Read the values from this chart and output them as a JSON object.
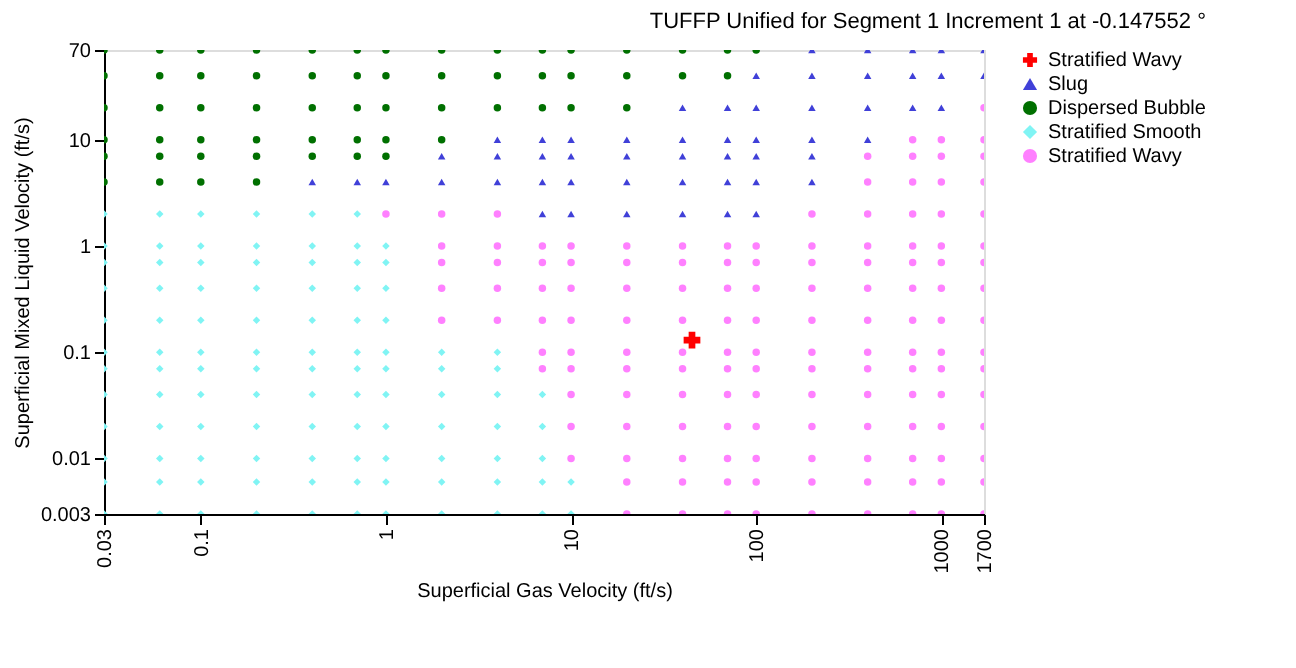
{
  "chart_data": {
    "type": "scatter",
    "title": "TUFFP Unified for Segment 1 Increment 1 at -0.147552 °",
    "xlabel": "Superficial Gas Velocity (ft/s)",
    "ylabel": "Superficial Mixed Liquid Velocity (ft/s)",
    "log": "xy",
    "xlim": [
      0.03,
      1700
    ],
    "ylim": [
      0.003,
      70
    ],
    "xticks": [
      0.03,
      0.1,
      1,
      10,
      100,
      1000,
      1700
    ],
    "yticks": [
      0.003,
      0.01,
      0.1,
      1,
      10,
      70
    ],
    "legend": "right",
    "series": [
      {
        "name": "Stratified Wavy",
        "color": "#ff0000",
        "marker": "cross",
        "x": [
          45
        ],
        "values": [
          0.13
        ]
      },
      {
        "name": "Slug",
        "color": "#4040d8",
        "marker": "triangle",
        "x": [
          0.4,
          0.7,
          1,
          2,
          2,
          4,
          4,
          4,
          7,
          7,
          7,
          7,
          10,
          10,
          10,
          10,
          20,
          20,
          20,
          20,
          40,
          40,
          40,
          40,
          40,
          70,
          70,
          70,
          70,
          70,
          100,
          100,
          100,
          100,
          100,
          100,
          200,
          200,
          200,
          200,
          200,
          200,
          400,
          400,
          400,
          400,
          700,
          700,
          700,
          1000,
          1000,
          1000,
          1700,
          1700
        ],
        "values": [
          4,
          4,
          4,
          4,
          7,
          4,
          7,
          10,
          2,
          4,
          7,
          10,
          2,
          4,
          7,
          10,
          2,
          4,
          7,
          10,
          2,
          4,
          7,
          10,
          20,
          2,
          4,
          7,
          10,
          20,
          2,
          4,
          7,
          10,
          20,
          40,
          4,
          7,
          10,
          20,
          40,
          70,
          10,
          20,
          40,
          70,
          20,
          40,
          70,
          20,
          40,
          70,
          40,
          70
        ]
      },
      {
        "name": "Dispersed Bubble",
        "color": "#007000",
        "marker": "circle",
        "x": [
          0.03,
          0.03,
          0.03,
          0.03,
          0.03,
          0.03,
          0.06,
          0.06,
          0.06,
          0.06,
          0.06,
          0.06,
          0.1,
          0.1,
          0.1,
          0.1,
          0.1,
          0.1,
          0.2,
          0.2,
          0.2,
          0.2,
          0.2,
          0.2,
          0.4,
          0.4,
          0.4,
          0.4,
          0.4,
          0.7,
          0.7,
          0.7,
          0.7,
          0.7,
          1,
          1,
          1,
          1,
          1,
          2,
          2,
          2,
          2,
          4,
          4,
          4,
          7,
          7,
          7,
          10,
          10,
          10,
          20,
          20,
          20,
          40,
          40,
          70,
          70,
          100
        ],
        "values": [
          4,
          7,
          10,
          20,
          40,
          70,
          4,
          7,
          10,
          20,
          40,
          70,
          4,
          7,
          10,
          20,
          40,
          70,
          4,
          7,
          10,
          20,
          40,
          70,
          7,
          10,
          20,
          40,
          70,
          7,
          10,
          20,
          40,
          70,
          7,
          10,
          20,
          40,
          70,
          10,
          20,
          40,
          70,
          20,
          40,
          70,
          20,
          40,
          70,
          20,
          40,
          70,
          20,
          40,
          70,
          40,
          70,
          40,
          70,
          70
        ]
      },
      {
        "name": "Stratified Smooth",
        "color": "#80f4f4",
        "marker": "diamond",
        "x": [
          0.03,
          0.03,
          0.03,
          0.03,
          0.03,
          0.03,
          0.03,
          0.03,
          0.03,
          0.03,
          0.03,
          0.03,
          0.06,
          0.06,
          0.06,
          0.06,
          0.06,
          0.06,
          0.06,
          0.06,
          0.06,
          0.06,
          0.06,
          0.06,
          0.1,
          0.1,
          0.1,
          0.1,
          0.1,
          0.1,
          0.1,
          0.1,
          0.1,
          0.1,
          0.1,
          0.1,
          0.2,
          0.2,
          0.2,
          0.2,
          0.2,
          0.2,
          0.2,
          0.2,
          0.2,
          0.2,
          0.2,
          0.2,
          0.4,
          0.4,
          0.4,
          0.4,
          0.4,
          0.4,
          0.4,
          0.4,
          0.4,
          0.4,
          0.4,
          0.4,
          0.7,
          0.7,
          0.7,
          0.7,
          0.7,
          0.7,
          0.7,
          0.7,
          0.7,
          0.7,
          0.7,
          0.7,
          1,
          1,
          1,
          1,
          1,
          1,
          1,
          1,
          1,
          1,
          1,
          2,
          2,
          2,
          2,
          2,
          2,
          2,
          4,
          4,
          4,
          4,
          4,
          4,
          4,
          7,
          7,
          7,
          7,
          7,
          10,
          10
        ],
        "values": [
          0.003,
          0.006,
          0.01,
          0.02,
          0.04,
          0.07,
          0.1,
          0.2,
          0.4,
          0.7,
          1,
          2,
          0.003,
          0.006,
          0.01,
          0.02,
          0.04,
          0.07,
          0.1,
          0.2,
          0.4,
          0.7,
          1,
          2,
          0.003,
          0.006,
          0.01,
          0.02,
          0.04,
          0.07,
          0.1,
          0.2,
          0.4,
          0.7,
          1,
          2,
          0.003,
          0.006,
          0.01,
          0.02,
          0.04,
          0.07,
          0.1,
          0.2,
          0.4,
          0.7,
          1,
          2,
          0.003,
          0.006,
          0.01,
          0.02,
          0.04,
          0.07,
          0.1,
          0.2,
          0.4,
          0.7,
          1,
          2,
          0.003,
          0.006,
          0.01,
          0.02,
          0.04,
          0.07,
          0.1,
          0.2,
          0.4,
          0.7,
          1,
          2,
          0.003,
          0.006,
          0.01,
          0.02,
          0.04,
          0.07,
          0.1,
          0.2,
          0.4,
          0.7,
          1,
          0.003,
          0.006,
          0.01,
          0.02,
          0.04,
          0.07,
          0.1,
          0.003,
          0.006,
          0.01,
          0.02,
          0.04,
          0.07,
          0.1,
          0.003,
          0.006,
          0.01,
          0.02,
          0.04,
          0.003,
          0.006
        ]
      },
      {
        "name": "Stratified Wavy",
        "color": "#ff80ff",
        "marker": "circle",
        "x": [
          1,
          2,
          2,
          2,
          2,
          2,
          4,
          4,
          4,
          4,
          4,
          7,
          7,
          7,
          7,
          7,
          7,
          10,
          10,
          10,
          10,
          10,
          10,
          10,
          10,
          10,
          20,
          20,
          20,
          20,
          20,
          20,
          20,
          20,
          20,
          20,
          20,
          40,
          40,
          40,
          40,
          40,
          40,
          40,
          40,
          40,
          40,
          40,
          70,
          70,
          70,
          70,
          70,
          70,
          70,
          70,
          70,
          70,
          70,
          100,
          100,
          100,
          100,
          100,
          100,
          100,
          100,
          100,
          100,
          100,
          200,
          200,
          200,
          200,
          200,
          200,
          200,
          200,
          200,
          200,
          200,
          200,
          400,
          400,
          400,
          400,
          400,
          400,
          400,
          400,
          400,
          400,
          400,
          400,
          400,
          400,
          700,
          700,
          700,
          700,
          700,
          700,
          700,
          700,
          700,
          700,
          700,
          700,
          700,
          700,
          700,
          1000,
          1000,
          1000,
          1000,
          1000,
          1000,
          1000,
          1000,
          1000,
          1000,
          1000,
          1000,
          1000,
          1000,
          1000,
          1700,
          1700,
          1700,
          1700,
          1700,
          1700,
          1700,
          1700,
          1700,
          1700,
          1700,
          1700,
          1700,
          1700,
          1700,
          1700
        ],
        "values": [
          2,
          0.2,
          0.4,
          0.7,
          1,
          2,
          0.2,
          0.4,
          0.7,
          1,
          2,
          0.07,
          0.1,
          0.2,
          0.4,
          0.7,
          1,
          0.01,
          0.02,
          0.04,
          0.07,
          0.1,
          0.2,
          0.4,
          0.7,
          1,
          0.003,
          0.006,
          0.01,
          0.02,
          0.04,
          0.07,
          0.1,
          0.2,
          0.4,
          0.7,
          1,
          0.003,
          0.006,
          0.01,
          0.02,
          0.04,
          0.07,
          0.1,
          0.2,
          0.4,
          0.7,
          1,
          0.003,
          0.006,
          0.01,
          0.02,
          0.04,
          0.07,
          0.1,
          0.2,
          0.4,
          0.7,
          1,
          0.003,
          0.006,
          0.01,
          0.02,
          0.04,
          0.07,
          0.1,
          0.2,
          0.4,
          0.7,
          1,
          0.003,
          0.006,
          0.01,
          0.02,
          0.04,
          0.07,
          0.1,
          0.2,
          0.4,
          0.7,
          1,
          2,
          0.003,
          0.006,
          0.01,
          0.02,
          0.04,
          0.07,
          0.1,
          0.2,
          0.4,
          0.7,
          1,
          2,
          4,
          7,
          0.003,
          0.006,
          0.01,
          0.02,
          0.04,
          0.07,
          0.1,
          0.2,
          0.4,
          0.7,
          1,
          2,
          4,
          7,
          10,
          0.003,
          0.006,
          0.01,
          0.02,
          0.04,
          0.07,
          0.1,
          0.2,
          0.4,
          0.7,
          1,
          2,
          4,
          7,
          10,
          0.003,
          0.006,
          0.01,
          0.02,
          0.04,
          0.07,
          0.1,
          0.2,
          0.4,
          0.7,
          1,
          2,
          4,
          7,
          10,
          20
        ]
      }
    ]
  }
}
